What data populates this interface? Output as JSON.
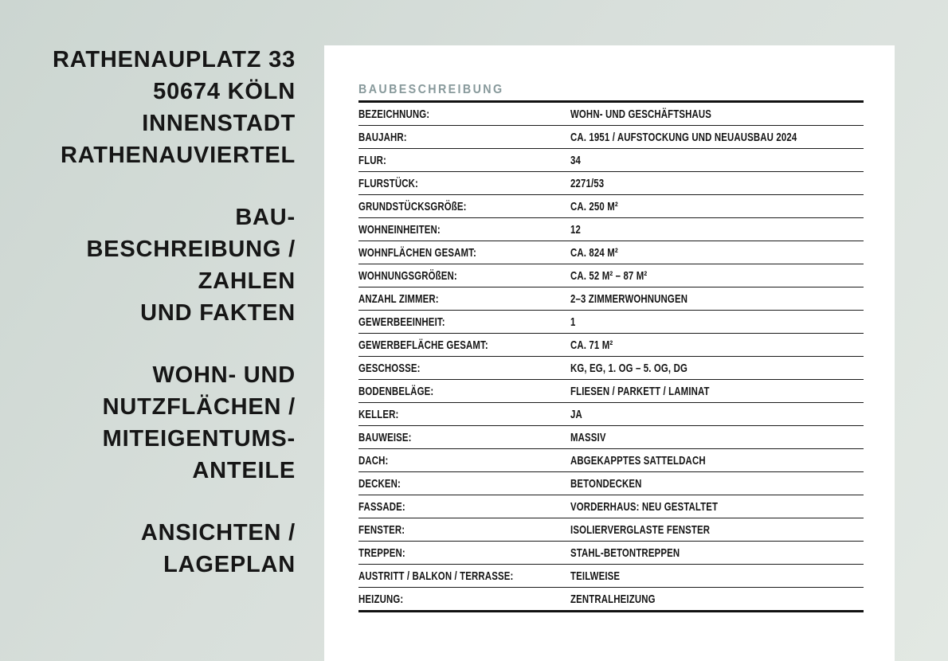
{
  "sidebar": {
    "groups": [
      {
        "lines": [
          "RATHENAUPLATZ 33",
          "50674 KÖLN",
          "INNENSTADT",
          "RATHENAUVIERTEL"
        ]
      },
      {
        "lines": [
          "BAU-",
          "BESCHREIBUNG /",
          "ZAHLEN",
          "UND FAKTEN"
        ]
      },
      {
        "lines": [
          "WOHN- UND",
          "NUTZFLÄCHEN /",
          "MITEIGENTUMS-",
          "ANTEILE"
        ]
      },
      {
        "lines": [
          "ANSICHTEN /",
          "LAGEPLAN"
        ]
      }
    ]
  },
  "table": {
    "title": "BAUBESCHREIBUNG",
    "rows": [
      {
        "label": "BEZEICHNUNG:",
        "value": "WOHN- UND GESCHÄFTSHAUS"
      },
      {
        "label": "BAUJAHR:",
        "value": "CA. 1951 / AUFSTOCKUNG UND NEUAUSBAU 2024"
      },
      {
        "label": "FLUR:",
        "value": "34"
      },
      {
        "label": "FLURSTÜCK:",
        "value": "2271/53"
      },
      {
        "label": "GRUNDSTÜCKSGRÖßE:",
        "value": "CA. 250 M²"
      },
      {
        "label": "WOHNEINHEITEN:",
        "value": "12"
      },
      {
        "label": "WOHNFLÄCHEN GESAMT:",
        "value": "CA. 824 M²"
      },
      {
        "label": "WOHNUNGSGRÖßEN:",
        "value": "CA. 52 M² – 87 M²"
      },
      {
        "label": "ANZAHL ZIMMER:",
        "value": "2–3 ZIMMERWOHNUNGEN"
      },
      {
        "label": "GEWERBEEINHEIT:",
        "value": "1"
      },
      {
        "label": "GEWERBEFLÄCHE GESAMT:",
        "value": "CA. 71 M²"
      },
      {
        "label": "GESCHOSSE:",
        "value": "KG, EG, 1. OG – 5. OG, DG"
      },
      {
        "label": "BODENBELÄGE:",
        "value": "FLIESEN / PARKETT / LAMINAT"
      },
      {
        "label": "KELLER:",
        "value": "JA"
      },
      {
        "label": "BAUWEISE:",
        "value": "MASSIV"
      },
      {
        "label": "DACH:",
        "value": "ABGEKAPPTES SATTELDACH"
      },
      {
        "label": "DECKEN:",
        "value": "BETONDECKEN"
      },
      {
        "label": "FASSADE:",
        "value": "VORDERHAUS: NEU GESTALTET"
      },
      {
        "label": "FENSTER:",
        "value": "ISOLIERVERGLASTE FENSTER"
      },
      {
        "label": "TREPPEN:",
        "value": "STAHL-BETONTREPPEN"
      },
      {
        "label": "AUSTRITT / BALKON / TERRASSE:",
        "value": "TEILWEISE"
      },
      {
        "label": "HEIZUNG:",
        "value": "ZENTRALHEIZUNG"
      }
    ]
  },
  "colors": {
    "accent_teal": "#87999B",
    "background_sage": "#D8DFDB",
    "panel_white": "#FFFFFF",
    "text_dark": "#161616",
    "rule_black": "#111111"
  }
}
